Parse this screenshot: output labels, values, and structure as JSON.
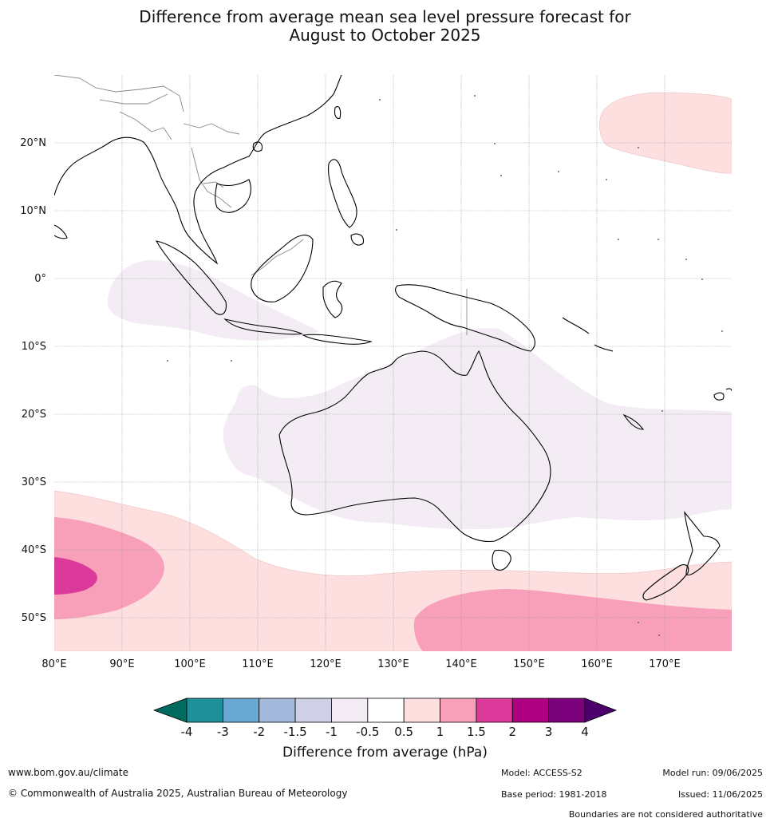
{
  "title_line1": "Difference from average mean sea level pressure forecast for",
  "title_line2": "August to October 2025",
  "lat_labels": [
    "20°N",
    "10°N",
    "0°",
    "10°S",
    "20°S",
    "30°S",
    "40°S",
    "50°S"
  ],
  "lon_labels": [
    "80°E",
    "90°E",
    "100°E",
    "110°E",
    "120°E",
    "130°E",
    "140°E",
    "150°E",
    "160°E",
    "170°E"
  ],
  "legend": {
    "title": "Difference from average (hPa)",
    "ticks": [
      "-4",
      "-3",
      "-2",
      "-1.5",
      "-1",
      "-0.5",
      "0.5",
      "1",
      "1.5",
      "2",
      "3",
      "4"
    ],
    "colors": [
      "#006b5e",
      "#1e9099",
      "#68aad4",
      "#a5b9dc",
      "#cfd0e6",
      "#f3ecf4",
      "#ffffff",
      "#fddfdf",
      "#f8a0b9",
      "#dc3a9a",
      "#ae0081",
      "#7b007c",
      "#4b006b"
    ]
  },
  "map_colors": {
    "neg05": "#f3ecf4",
    "pos05": "#fddfdf",
    "pos1": "#f8a0b9",
    "pos15": "#dc3a9a",
    "coast": "#000000",
    "border": "#888888"
  },
  "footer": {
    "url": "www.bom.gov.au/climate",
    "copyright": "© Commonwealth of Australia 2025, Australian Bureau of Meteorology",
    "model": "Model: ACCESS-S2",
    "model_run": "Model run: 09/06/2025",
    "base_period": "Base period: 1981-2018",
    "issued": "Issued: 11/06/2025",
    "disclaimer": "Boundaries are not considered authoritative"
  }
}
